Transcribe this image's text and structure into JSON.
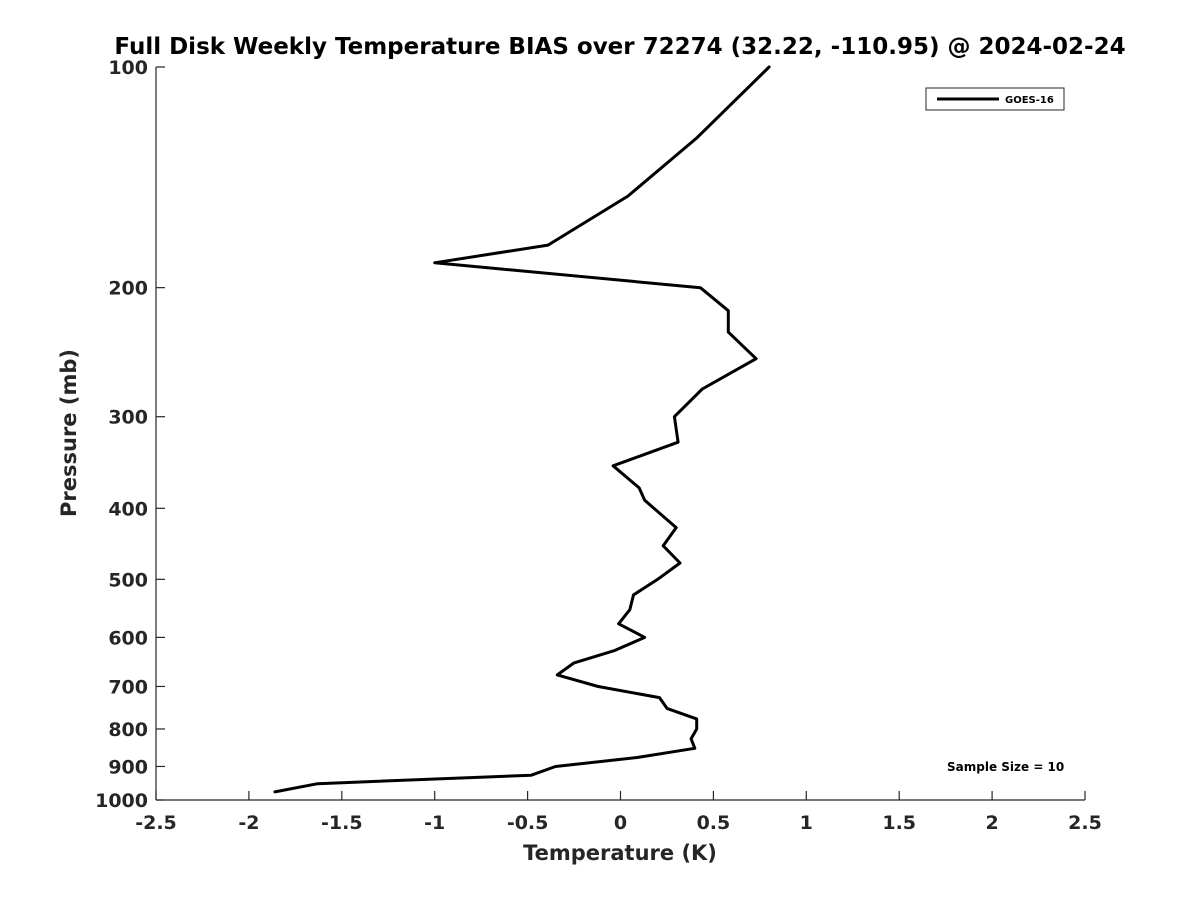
{
  "chart_data": {
    "type": "line",
    "title": "Full Disk Weekly Temperature BIAS over 72274 (32.22, -110.95) @ 2024-02-24",
    "xlabel": "Temperature (K)",
    "ylabel": "Pressure (mb)",
    "xlim": [
      -2.5,
      2.5
    ],
    "ylim": [
      100,
      1000
    ],
    "y_scale": "log",
    "y_reversed": true,
    "grid": false,
    "x_ticks": [
      -2.5,
      -2,
      -1.5,
      -1,
      -0.5,
      0,
      0.5,
      1,
      1.5,
      2,
      2.5
    ],
    "x_tick_labels": [
      "-2.5",
      "-2",
      "-1.5",
      "-1",
      "-0.5",
      "0",
      "0.5",
      "1",
      "1.5",
      "2",
      "2.5"
    ],
    "y_ticks": [
      100,
      200,
      300,
      400,
      500,
      600,
      700,
      800,
      900,
      1000
    ],
    "y_tick_labels": [
      "100",
      "200",
      "300",
      "400",
      "500",
      "600",
      "700",
      "800",
      "900",
      "1000"
    ],
    "legend": {
      "placement": "top-right",
      "entries": [
        "GOES-16"
      ]
    },
    "annotation": "Sample Size = 10",
    "series": [
      {
        "name": "GOES-16",
        "color": "#000000",
        "x": [
          0.8,
          0.41,
          0.04,
          -0.39,
          -1.0,
          0.43,
          0.58,
          0.58,
          0.73,
          0.44,
          0.29,
          0.31,
          -0.04,
          0.1,
          0.13,
          0.18,
          0.3,
          0.23,
          0.32,
          0.2,
          0.07,
          0.05,
          -0.01,
          0.13,
          -0.03,
          -0.25,
          -0.34,
          -0.12,
          0.21,
          0.25,
          0.41,
          0.41,
          0.38,
          0.4,
          0.09,
          -0.35,
          -0.48,
          -1.63,
          -1.86
        ],
        "y": [
          100,
          125,
          150,
          175,
          185,
          200,
          215,
          230,
          250,
          275,
          300,
          325,
          350,
          375,
          390,
          400,
          425,
          450,
          475,
          500,
          525,
          550,
          575,
          600,
          625,
          650,
          675,
          700,
          725,
          750,
          775,
          800,
          825,
          850,
          875,
          900,
          925,
          950,
          975
        ]
      }
    ]
  }
}
